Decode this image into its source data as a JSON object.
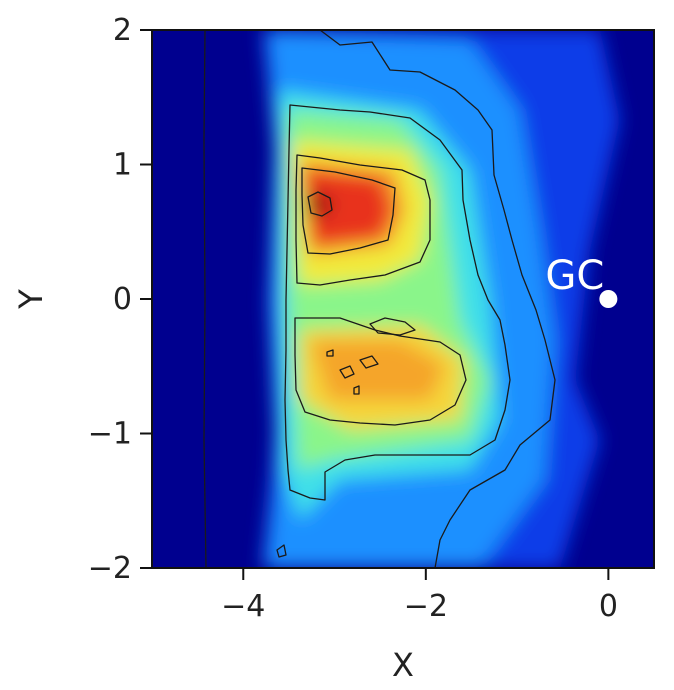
{
  "chart_data": {
    "type": "heatmap",
    "xlabel": "X",
    "ylabel": "Y",
    "xlim": [
      -5.0,
      0.5
    ],
    "ylim": [
      -2,
      2
    ],
    "x_ticks": [
      -4,
      -2,
      0
    ],
    "x_tick_labels": [
      "−4",
      "−2",
      "0"
    ],
    "y_ticks": [
      -2,
      -1,
      0,
      1,
      2
    ],
    "y_tick_labels": [
      "−2",
      "−1",
      "0",
      "1",
      "2"
    ],
    "colormap": "jet",
    "contours": true,
    "density_peaks": [
      {
        "x": -2.95,
        "y": 0.72,
        "level": 0.95
      },
      {
        "x": -2.75,
        "y": -0.55,
        "level": 0.75
      }
    ],
    "annotations": [
      {
        "text": "GC",
        "x": 0,
        "y": 0
      }
    ],
    "grid": false
  }
}
